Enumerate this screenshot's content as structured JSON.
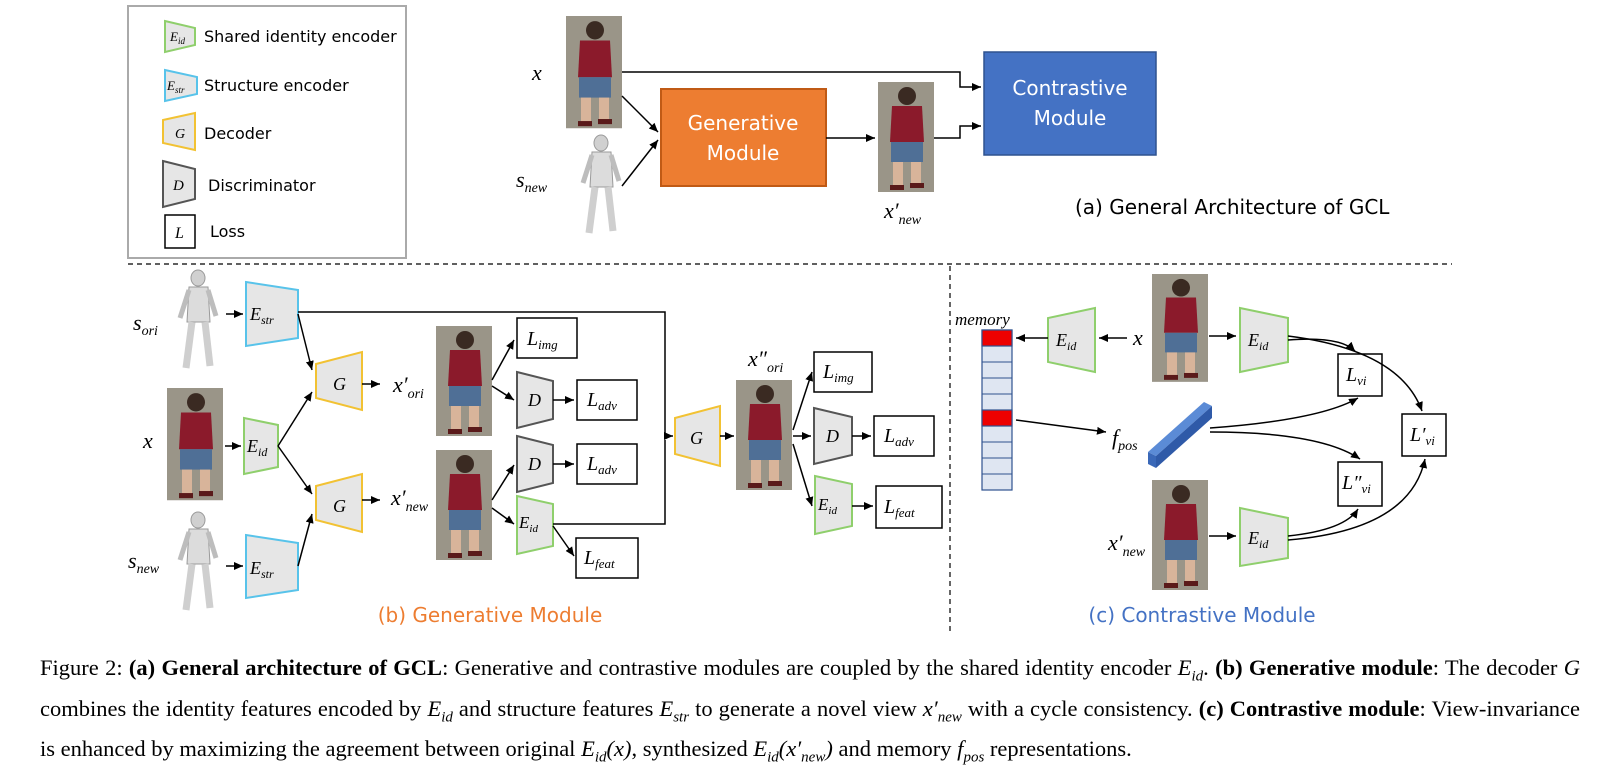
{
  "legend": {
    "items": [
      {
        "symbol": "E_id",
        "text": "Shared identity encoder",
        "color": "#8fcf6c"
      },
      {
        "symbol": "E_str",
        "text": "Structure encoder",
        "color": "#58c3ea"
      },
      {
        "symbol": "G",
        "text": "Decoder",
        "color": "#f2c233"
      },
      {
        "symbol": "D",
        "text": "Discriminator",
        "color": "#555555"
      },
      {
        "symbol": "L",
        "text": "Loss",
        "color": "#000000"
      }
    ]
  },
  "panel_a": {
    "generative_module": "Generative Module",
    "contrastive_module": "Contrastive Module",
    "caption": "(a) General Architecture of GCL",
    "colors": {
      "generative": "#ed7d31",
      "contrastive": "#4472c4"
    }
  },
  "panel_b": {
    "caption": "(b) Generative Module",
    "caption_color": "#ed7d31"
  },
  "panel_c": {
    "caption": "(c) Contrastive Module",
    "caption_color": "#4472c4",
    "memory_label": "memory"
  },
  "caption": {
    "figure_label": "Figure 2:",
    "a_head": "(a) General architecture of GCL",
    "a_text": ": Generative and contrastive modules are coupled by the shared identity encoder ",
    "b_head": "(b) Generative module",
    "b_text1": ": The decoder ",
    "b_text2": " combines the identity features encoded by ",
    "b_text3": " and structure features ",
    "b_text4": " to generate a novel view ",
    "b_text5": " with a cycle consistency.",
    "c_head": "(c) Contrastive module",
    "c_text1": ": View-invariance is enhanced by maximizing the agreement between original ",
    "c_text2": ", synthesized ",
    "c_text3": " and memory ",
    "c_text4": " representations."
  },
  "icons": [
    "person-photo-icon",
    "3d-body-model-icon",
    "feature-bar-icon"
  ]
}
